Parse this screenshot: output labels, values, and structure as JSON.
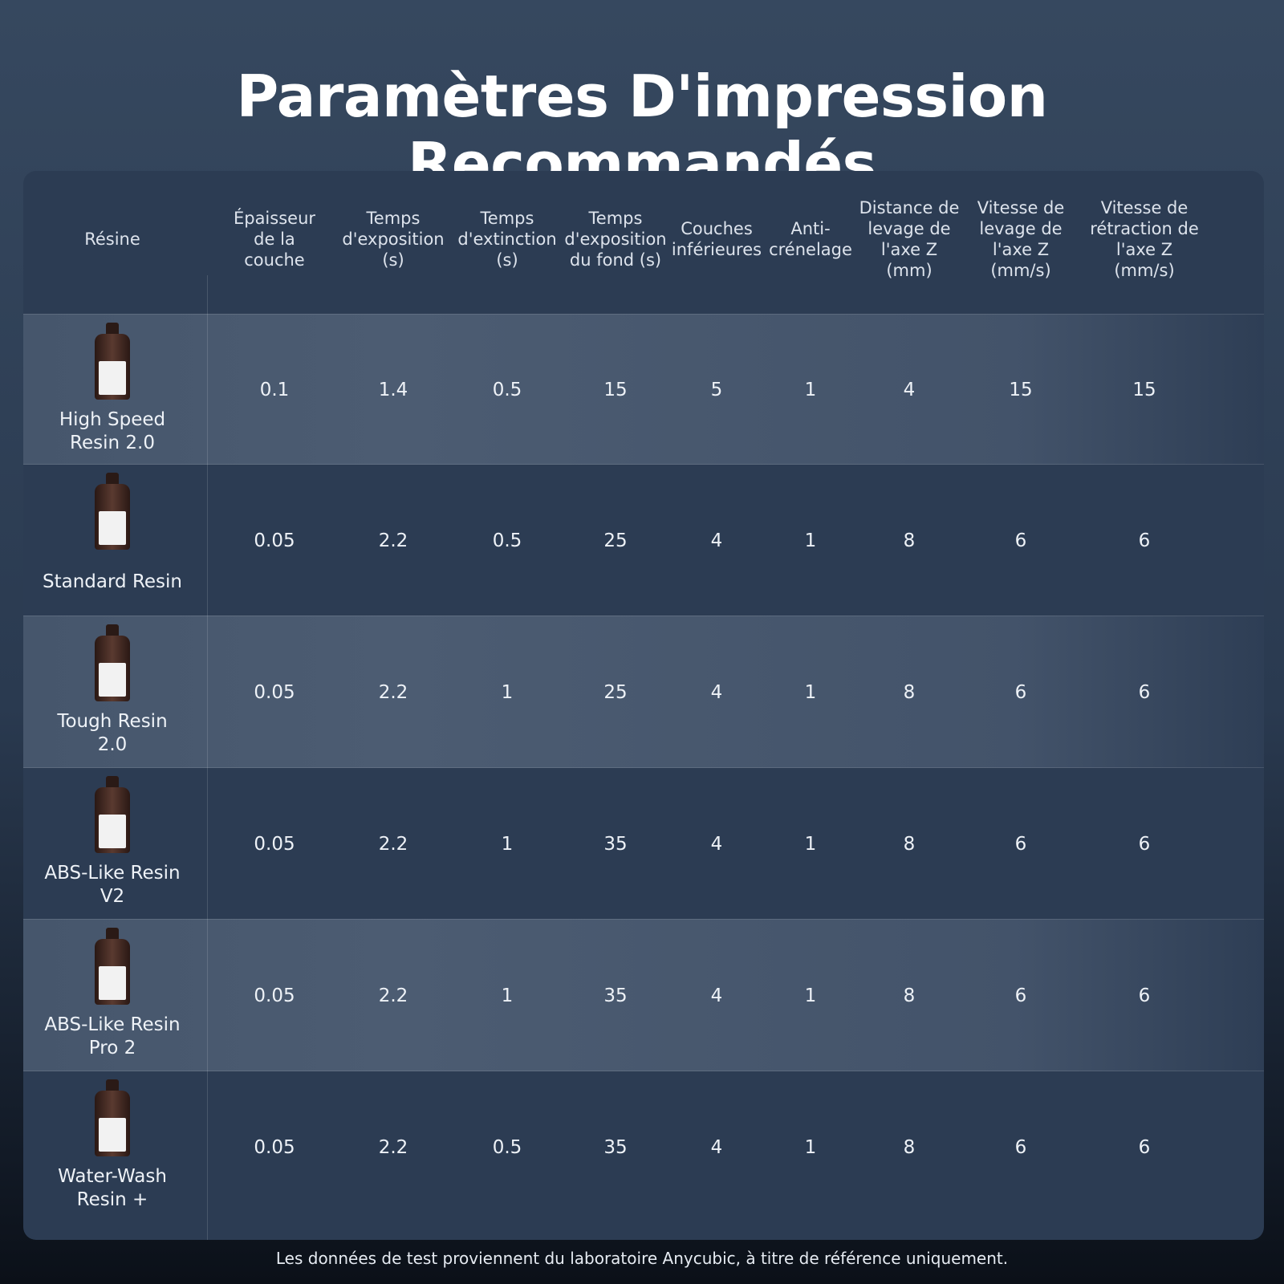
{
  "title": "Paramètres D'impression Recommandés",
  "table": {
    "headers": [
      "Résine",
      "Épaisseur de la couche",
      "Temps d'exposition (s)",
      "Temps d'extinction (s)",
      "Temps d'exposition du fond (s)",
      "Couches inférieures",
      "Anti-crénelage",
      "Distance de levage de l'axe Z (mm)",
      "Vitesse de levage de l'axe Z (mm/s)",
      "Vitesse de rétraction de l'axe Z (mm/s)"
    ],
    "rows": [
      [
        "High Speed Resin 2.0",
        0.1,
        1.4,
        0.5,
        15,
        5,
        1,
        4,
        15,
        15
      ],
      [
        "Standard Resin",
        0.05,
        2.2,
        0.5,
        25,
        4,
        1,
        8,
        6,
        6
      ],
      [
        "Tough Resin 2.0",
        0.05,
        2.2,
        1,
        25,
        4,
        1,
        8,
        6,
        6
      ],
      [
        "ABS-Like Resin V2",
        0.05,
        2.2,
        1,
        35,
        4,
        1,
        8,
        6,
        6
      ],
      [
        "ABS-Like Resin Pro 2",
        0.05,
        2.2,
        1,
        35,
        4,
        1,
        8,
        6,
        6
      ],
      [
        "Water-Wash Resin +",
        0.05,
        2.2,
        0.5,
        35,
        4,
        1,
        8,
        6,
        6
      ]
    ]
  },
  "footnote": "Les données de test proviennent du laboratoire Anycubic, à titre de référence uniquement."
}
